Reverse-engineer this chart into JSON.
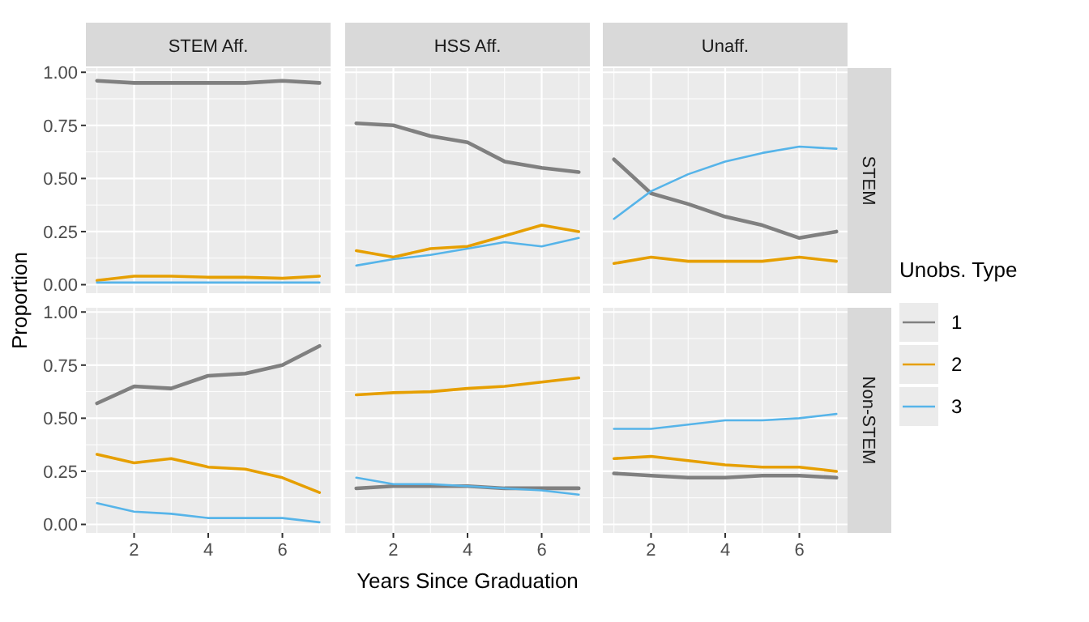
{
  "chart_data": [
    {
      "type": "line",
      "title": "STEM Aff.",
      "ylabel": "Proportion",
      "x": [
        1,
        2,
        3,
        4,
        5,
        6,
        7
      ],
      "xlim": [
        0.7,
        7.3
      ],
      "xticks": [
        2,
        4,
        6
      ],
      "ylim": [
        -0.04,
        1.02
      ],
      "yticks": [
        {
          "value": 0,
          "label": "0.00"
        },
        {
          "value": 0.25,
          "label": "0.25"
        },
        {
          "value": 0.5,
          "label": "0.50"
        },
        {
          "value": 0.75,
          "label": "0.75"
        },
        {
          "value": 1,
          "label": "1.00"
        }
      ],
      "grid": true,
      "legend": false,
      "tick_labels": "y",
      "series": [
        {
          "color": "#808080",
          "values": [
            0.96,
            0.95,
            0.95,
            0.95,
            0.95,
            0.96,
            0.95
          ]
        },
        {
          "color": "#e69f00",
          "values": [
            0.02,
            0.04,
            0.04,
            0.035,
            0.035,
            0.03,
            0.04
          ]
        },
        {
          "color": "#56b4e9",
          "values": [
            0.01,
            0.01,
            0.01,
            0.01,
            0.01,
            0.01,
            0.01
          ]
        }
      ]
    },
    {
      "type": "line",
      "title": "HSS Aff.",
      "x": [
        1,
        2,
        3,
        4,
        5,
        6,
        7
      ],
      "xlim": [
        0.7,
        7.3
      ],
      "xticks": [
        2,
        4,
        6
      ],
      "ylim": [
        -0.04,
        1.02
      ],
      "yticks": [
        0,
        0.25,
        0.5,
        0.75,
        1
      ],
      "grid": true,
      "legend": false,
      "tick_labels": false,
      "series": [
        {
          "color": "#808080",
          "values": [
            0.76,
            0.75,
            0.7,
            0.67,
            0.58,
            0.55,
            0.53
          ]
        },
        {
          "color": "#e69f00",
          "values": [
            0.16,
            0.13,
            0.17,
            0.18,
            0.23,
            0.28,
            0.25
          ]
        },
        {
          "color": "#56b4e9",
          "values": [
            0.09,
            0.12,
            0.14,
            0.17,
            0.2,
            0.18,
            0.22
          ]
        }
      ]
    },
    {
      "type": "line",
      "title": "Unaff.",
      "y2label": "STEM",
      "legend_title": "Unobs. Type",
      "x": [
        1,
        2,
        3,
        4,
        5,
        6,
        7
      ],
      "xlim": [
        0.7,
        7.3
      ],
      "xticks": [
        2,
        4,
        6
      ],
      "ylim": [
        -0.04,
        1.02
      ],
      "yticks": [
        0,
        0.25,
        0.5,
        0.75,
        1
      ],
      "grid": true,
      "legend": "right",
      "tick_labels": false,
      "series": [
        {
          "name": "1",
          "color": "#808080",
          "values": [
            0.59,
            0.43,
            0.38,
            0.32,
            0.28,
            0.22,
            0.25
          ]
        },
        {
          "name": "2",
          "color": "#e69f00",
          "values": [
            0.1,
            0.13,
            0.11,
            0.11,
            0.11,
            0.13,
            0.11
          ]
        },
        {
          "name": "3",
          "color": "#56b4e9",
          "values": [
            0.31,
            0.44,
            0.52,
            0.58,
            0.62,
            0.65,
            0.64
          ]
        }
      ]
    },
    {
      "type": "line",
      "x": [
        1,
        2,
        3,
        4,
        5,
        6,
        7
      ],
      "xlim": [
        0.7,
        7.3
      ],
      "xticks": [
        2,
        4,
        6
      ],
      "ylim": [
        -0.04,
        1.02
      ],
      "yticks": [
        {
          "value": 0,
          "label": "0.00"
        },
        {
          "value": 0.25,
          "label": "0.25"
        },
        {
          "value": 0.5,
          "label": "0.50"
        },
        {
          "value": 0.75,
          "label": "0.75"
        },
        {
          "value": 1,
          "label": "1.00"
        }
      ],
      "grid": true,
      "legend": false,
      "series": [
        {
          "color": "#808080",
          "values": [
            0.57,
            0.65,
            0.64,
            0.7,
            0.71,
            0.75,
            0.84
          ]
        },
        {
          "color": "#e69f00",
          "values": [
            0.33,
            0.29,
            0.31,
            0.27,
            0.26,
            0.22,
            0.15
          ]
        },
        {
          "color": "#56b4e9",
          "values": [
            0.1,
            0.06,
            0.05,
            0.03,
            0.03,
            0.03,
            0.01
          ]
        }
      ]
    },
    {
      "type": "line",
      "xlabel": "Years Since Graduation",
      "x": [
        1,
        2,
        3,
        4,
        5,
        6,
        7
      ],
      "xlim": [
        0.7,
        7.3
      ],
      "xticks": [
        2,
        4,
        6
      ],
      "ylim": [
        -0.04,
        1.02
      ],
      "yticks": [
        0,
        0.25,
        0.5,
        0.75,
        1
      ],
      "grid": true,
      "legend": false,
      "tick_labels": "x",
      "series": [
        {
          "color": "#808080",
          "values": [
            0.17,
            0.18,
            0.18,
            0.18,
            0.17,
            0.17,
            0.17
          ]
        },
        {
          "color": "#e69f00",
          "values": [
            0.61,
            0.62,
            0.625,
            0.64,
            0.65,
            0.67,
            0.69
          ]
        },
        {
          "color": "#56b4e9",
          "values": [
            0.22,
            0.19,
            0.19,
            0.18,
            0.17,
            0.16,
            0.14
          ]
        }
      ]
    },
    {
      "type": "line",
      "y2label": "Non-STEM",
      "x": [
        1,
        2,
        3,
        4,
        5,
        6,
        7
      ],
      "xlim": [
        0.7,
        7.3
      ],
      "xticks": [
        2,
        4,
        6
      ],
      "ylim": [
        -0.04,
        1.02
      ],
      "yticks": [
        0,
        0.25,
        0.5,
        0.75,
        1
      ],
      "grid": true,
      "legend": false,
      "tick_labels": "x",
      "series": [
        {
          "color": "#808080",
          "values": [
            0.24,
            0.23,
            0.22,
            0.22,
            0.23,
            0.23,
            0.22
          ]
        },
        {
          "color": "#e69f00",
          "values": [
            0.31,
            0.32,
            0.3,
            0.28,
            0.27,
            0.27,
            0.25
          ]
        },
        {
          "color": "#56b4e9",
          "values": [
            0.45,
            0.45,
            0.47,
            0.49,
            0.49,
            0.5,
            0.52
          ]
        }
      ]
    }
  ]
}
